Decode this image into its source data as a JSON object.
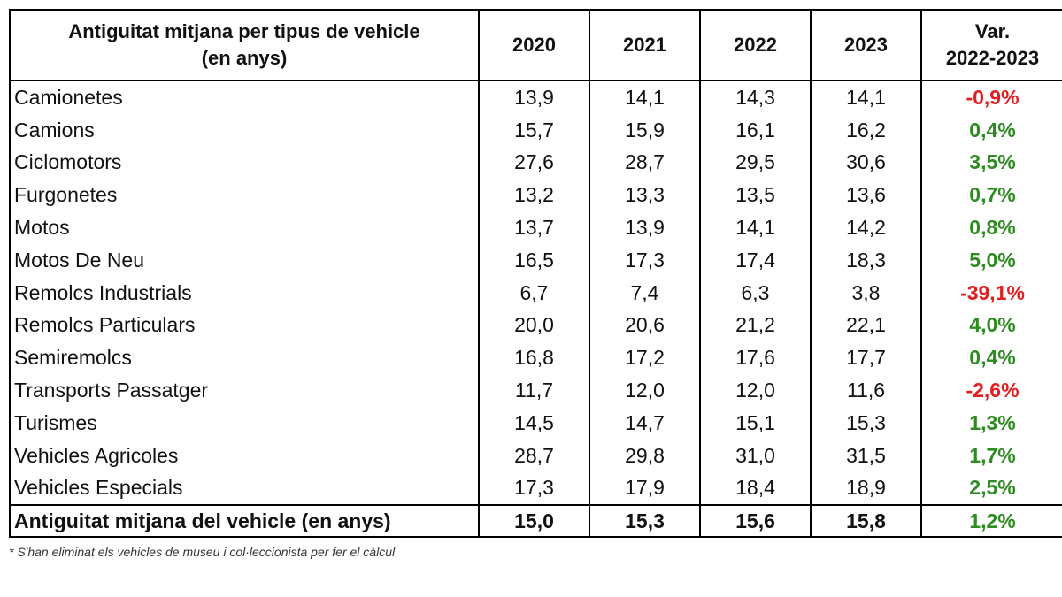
{
  "header": {
    "title_line1": "Antiguitat mitjana per tipus de vehicle",
    "title_line2": "(en anys)",
    "years": [
      "2020",
      "2021",
      "2022",
      "2023"
    ],
    "var_line1": "Var.",
    "var_line2": "2022-2023"
  },
  "rows": [
    {
      "name": "Camionetes",
      "v": [
        "13,9",
        "14,1",
        "14,3",
        "14,1"
      ],
      "var": "-0,9%",
      "trend": "neg"
    },
    {
      "name": "Camions",
      "v": [
        "15,7",
        "15,9",
        "16,1",
        "16,2"
      ],
      "var": "0,4%",
      "trend": "pos"
    },
    {
      "name": "Ciclomotors",
      "v": [
        "27,6",
        "28,7",
        "29,5",
        "30,6"
      ],
      "var": "3,5%",
      "trend": "pos"
    },
    {
      "name": "Furgonetes",
      "v": [
        "13,2",
        "13,3",
        "13,5",
        "13,6"
      ],
      "var": "0,7%",
      "trend": "pos"
    },
    {
      "name": "Motos",
      "v": [
        "13,7",
        "13,9",
        "14,1",
        "14,2"
      ],
      "var": "0,8%",
      "trend": "pos"
    },
    {
      "name": "Motos De Neu",
      "v": [
        "16,5",
        "17,3",
        "17,4",
        "18,3"
      ],
      "var": "5,0%",
      "trend": "pos"
    },
    {
      "name": "Remolcs Industrials",
      "v": [
        "6,7",
        "7,4",
        "6,3",
        "3,8"
      ],
      "var": "-39,1%",
      "trend": "neg"
    },
    {
      "name": "Remolcs Particulars",
      "v": [
        "20,0",
        "20,6",
        "21,2",
        "22,1"
      ],
      "var": "4,0%",
      "trend": "pos"
    },
    {
      "name": "Semiremolcs",
      "v": [
        "16,8",
        "17,2",
        "17,6",
        "17,7"
      ],
      "var": "0,4%",
      "trend": "pos"
    },
    {
      "name": "Transports Passatger",
      "v": [
        "11,7",
        "12,0",
        "12,0",
        "11,6"
      ],
      "var": "-2,6%",
      "trend": "neg"
    },
    {
      "name": "Turismes",
      "v": [
        "14,5",
        "14,7",
        "15,1",
        "15,3"
      ],
      "var": "1,3%",
      "trend": "pos"
    },
    {
      "name": "Vehicles Agricoles",
      "v": [
        "28,7",
        "29,8",
        "31,0",
        "31,5"
      ],
      "var": "1,7%",
      "trend": "pos"
    },
    {
      "name": "Vehicles Especials",
      "v": [
        "17,3",
        "17,9",
        "18,4",
        "18,9"
      ],
      "var": "2,5%",
      "trend": "pos"
    }
  ],
  "total": {
    "name": "Antiguitat mitjana del vehicle (en anys)",
    "v": [
      "15,0",
      "15,3",
      "15,6",
      "15,8"
    ],
    "var": "1,2%",
    "trend": "pos"
  },
  "footnote": "* S'han eliminat els vehicles de museu i col·leccionista per fer el càlcul",
  "colors": {
    "negative": "#e02020",
    "positive": "#2e8b22"
  }
}
